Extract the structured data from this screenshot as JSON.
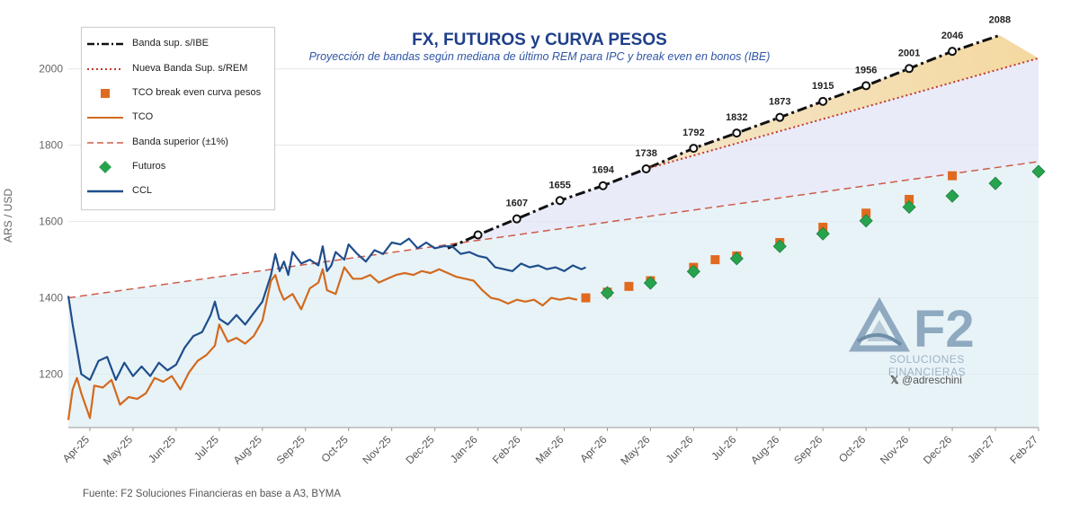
{
  "title": "FX, FUTUROS y CURVA PESOS",
  "subtitle": "Proyección de bandas según mediana de último REM para IPC y break even en bonos (IBE)",
  "source": "Fuente: F2 Soluciones Financieras en base a A3, BYMA",
  "brand": {
    "logo_text": "F2",
    "tagline": "SOLUCIONES FINANCIERAS",
    "handle": "@adreschini",
    "handle_icon": "x-logo-icon",
    "logo_color": "#8faac0"
  },
  "legend": [
    {
      "label": "Banda sup. s/IBE",
      "symbol": "dashdot-line",
      "color": "#111111"
    },
    {
      "label": "Nueva Banda Sup. s/REM",
      "symbol": "dotted-line",
      "color": "#c0392b"
    },
    {
      "label": "TCO break even curva pesos",
      "symbol": "square",
      "color": "#e06a1f"
    },
    {
      "label": "TCO",
      "symbol": "line",
      "color": "#d26a1e"
    },
    {
      "label": "Banda superior (±1%)",
      "symbol": "dashed-line",
      "color": "#cd5c4a"
    },
    {
      "label": "Futuros",
      "symbol": "diamond",
      "color": "#27a34e"
    },
    {
      "label": "CCL",
      "symbol": "line",
      "color": "#1f4e8c"
    }
  ],
  "chart_data": {
    "type": "line",
    "title": "FX, FUTUROS y CURVA PESOS",
    "ylabel": "ARS / USD",
    "xlabel": "",
    "ylim": [
      1060,
      2110
    ],
    "yticks": [
      1200,
      1400,
      1600,
      1800,
      2000
    ],
    "xlim": [
      0,
      22.5
    ],
    "x_note": "x expressed in months from 2025-03-31 (0 = end of Mar-25)",
    "xticks": [
      {
        "x": 0.5,
        "label": "Apr-25"
      },
      {
        "x": 1.5,
        "label": "May-25"
      },
      {
        "x": 2.5,
        "label": "Jun-25"
      },
      {
        "x": 3.5,
        "label": "Jul-25"
      },
      {
        "x": 4.5,
        "label": "Aug-25"
      },
      {
        "x": 5.5,
        "label": "Sep-25"
      },
      {
        "x": 6.5,
        "label": "Oct-25"
      },
      {
        "x": 7.5,
        "label": "Nov-25"
      },
      {
        "x": 8.5,
        "label": "Dec-25"
      },
      {
        "x": 9.5,
        "label": "Jan-26"
      },
      {
        "x": 10.5,
        "label": "Feb-26"
      },
      {
        "x": 11.5,
        "label": "Mar-26"
      },
      {
        "x": 12.5,
        "label": "Apr-26"
      },
      {
        "x": 13.5,
        "label": "May-26"
      },
      {
        "x": 14.5,
        "label": "Jun-26"
      },
      {
        "x": 15.5,
        "label": "Jul-26"
      },
      {
        "x": 16.5,
        "label": "Aug-26"
      },
      {
        "x": 17.5,
        "label": "Sep-26"
      },
      {
        "x": 18.5,
        "label": "Oct-26"
      },
      {
        "x": 19.5,
        "label": "Nov-26"
      },
      {
        "x": 20.5,
        "label": "Dec-26"
      },
      {
        "x": 21.5,
        "label": "Jan-27"
      },
      {
        "x": 22.5,
        "label": "Feb-27"
      }
    ],
    "series": [
      {
        "name": "Banda superior (±1%)",
        "style": "dashed",
        "color": "#cd5c4a",
        "points": [
          [
            0,
            1400
          ],
          [
            22.5,
            1757
          ]
        ]
      },
      {
        "name": "Banda sup. s/IBE",
        "style": "dashdot",
        "color": "#111111",
        "points": [
          [
            8.8,
            1530
          ],
          [
            9.5,
            1565
          ],
          [
            10.4,
            1607
          ],
          [
            11.4,
            1655
          ],
          [
            12.4,
            1694
          ],
          [
            13.4,
            1738
          ],
          [
            14.5,
            1792
          ],
          [
            15.5,
            1832
          ],
          [
            16.5,
            1873
          ],
          [
            17.5,
            1915
          ],
          [
            18.5,
            1956
          ],
          [
            19.5,
            2001
          ],
          [
            20.5,
            2046
          ],
          [
            21.6,
            2088
          ]
        ],
        "markers": [
          [
            9.5,
            1565
          ],
          [
            10.4,
            1607
          ],
          [
            11.4,
            1655
          ],
          [
            12.4,
            1694
          ],
          [
            13.4,
            1738
          ],
          [
            14.5,
            1792
          ],
          [
            15.5,
            1832
          ],
          [
            16.5,
            1873
          ],
          [
            17.5,
            1915
          ],
          [
            18.5,
            1956
          ],
          [
            19.5,
            2001
          ],
          [
            20.5,
            2046
          ]
        ],
        "labels": [
          {
            "x": 10.4,
            "y": 1607,
            "text": "1607"
          },
          {
            "x": 11.4,
            "y": 1655,
            "text": "1655"
          },
          {
            "x": 12.4,
            "y": 1694,
            "text": "1694"
          },
          {
            "x": 13.4,
            "y": 1738,
            "text": "1738"
          },
          {
            "x": 14.5,
            "y": 1792,
            "text": "1792"
          },
          {
            "x": 15.5,
            "y": 1832,
            "text": "1832"
          },
          {
            "x": 16.5,
            "y": 1873,
            "text": "1873"
          },
          {
            "x": 17.5,
            "y": 1915,
            "text": "1915"
          },
          {
            "x": 18.5,
            "y": 1956,
            "text": "1956"
          },
          {
            "x": 19.5,
            "y": 2001,
            "text": "2001"
          },
          {
            "x": 20.5,
            "y": 2046,
            "text": "2046"
          },
          {
            "x": 21.6,
            "y": 2088,
            "text": "2088"
          }
        ]
      },
      {
        "name": "Nueva Banda Sup. s/REM",
        "style": "dotted",
        "color": "#c0392b",
        "points": [
          [
            13.4,
            1738
          ],
          [
            22.5,
            2028
          ]
        ]
      },
      {
        "name": "CCL",
        "style": "solid",
        "color": "#1f4e8c",
        "points": [
          [
            0,
            1405
          ],
          [
            0.1,
            1330
          ],
          [
            0.3,
            1200
          ],
          [
            0.5,
            1185
          ],
          [
            0.7,
            1235
          ],
          [
            0.9,
            1245
          ],
          [
            1.1,
            1185
          ],
          [
            1.3,
            1230
          ],
          [
            1.5,
            1195
          ],
          [
            1.7,
            1220
          ],
          [
            1.9,
            1195
          ],
          [
            2.1,
            1230
          ],
          [
            2.3,
            1210
          ],
          [
            2.5,
            1225
          ],
          [
            2.7,
            1270
          ],
          [
            2.9,
            1300
          ],
          [
            3.1,
            1310
          ],
          [
            3.3,
            1355
          ],
          [
            3.4,
            1390
          ],
          [
            3.5,
            1345
          ],
          [
            3.7,
            1330
          ],
          [
            3.9,
            1355
          ],
          [
            4.1,
            1330
          ],
          [
            4.3,
            1360
          ],
          [
            4.5,
            1390
          ],
          [
            4.7,
            1460
          ],
          [
            4.8,
            1515
          ],
          [
            4.9,
            1470
          ],
          [
            5.0,
            1495
          ],
          [
            5.1,
            1460
          ],
          [
            5.2,
            1520
          ],
          [
            5.4,
            1490
          ],
          [
            5.6,
            1500
          ],
          [
            5.8,
            1485
          ],
          [
            5.9,
            1535
          ],
          [
            6.0,
            1470
          ],
          [
            6.1,
            1485
          ],
          [
            6.2,
            1520
          ],
          [
            6.4,
            1500
          ],
          [
            6.5,
            1540
          ],
          [
            6.7,
            1515
          ],
          [
            6.9,
            1495
          ],
          [
            7.1,
            1525
          ],
          [
            7.3,
            1515
          ],
          [
            7.5,
            1545
          ],
          [
            7.7,
            1540
          ],
          [
            7.9,
            1555
          ],
          [
            8.1,
            1530
          ],
          [
            8.3,
            1545
          ],
          [
            8.5,
            1530
          ],
          [
            8.7,
            1535
          ],
          [
            8.9,
            1535
          ],
          [
            9.1,
            1515
          ],
          [
            9.3,
            1520
          ],
          [
            9.5,
            1510
          ],
          [
            9.7,
            1505
          ],
          [
            9.9,
            1480
          ],
          [
            10.1,
            1475
          ],
          [
            10.3,
            1470
          ],
          [
            10.5,
            1490
          ],
          [
            10.7,
            1480
          ],
          [
            10.9,
            1485
          ],
          [
            11.1,
            1475
          ],
          [
            11.3,
            1480
          ],
          [
            11.5,
            1470
          ],
          [
            11.7,
            1485
          ],
          [
            11.9,
            1475
          ],
          [
            12.0,
            1480
          ]
        ]
      },
      {
        "name": "TCO",
        "style": "solid",
        "color": "#d26a1e",
        "points": [
          [
            0,
            1080
          ],
          [
            0.1,
            1160
          ],
          [
            0.2,
            1190
          ],
          [
            0.3,
            1150
          ],
          [
            0.5,
            1085
          ],
          [
            0.6,
            1170
          ],
          [
            0.8,
            1165
          ],
          [
            1.0,
            1185
          ],
          [
            1.2,
            1120
          ],
          [
            1.4,
            1140
          ],
          [
            1.6,
            1135
          ],
          [
            1.8,
            1150
          ],
          [
            2.0,
            1190
          ],
          [
            2.2,
            1180
          ],
          [
            2.4,
            1195
          ],
          [
            2.6,
            1160
          ],
          [
            2.8,
            1205
          ],
          [
            3.0,
            1235
          ],
          [
            3.2,
            1250
          ],
          [
            3.4,
            1275
          ],
          [
            3.5,
            1330
          ],
          [
            3.7,
            1285
          ],
          [
            3.9,
            1295
          ],
          [
            4.1,
            1280
          ],
          [
            4.3,
            1300
          ],
          [
            4.5,
            1340
          ],
          [
            4.7,
            1445
          ],
          [
            4.8,
            1460
          ],
          [
            4.9,
            1420
          ],
          [
            5.0,
            1395
          ],
          [
            5.2,
            1410
          ],
          [
            5.4,
            1370
          ],
          [
            5.6,
            1425
          ],
          [
            5.8,
            1440
          ],
          [
            5.9,
            1475
          ],
          [
            6.0,
            1420
          ],
          [
            6.2,
            1410
          ],
          [
            6.4,
            1480
          ],
          [
            6.6,
            1450
          ],
          [
            6.8,
            1450
          ],
          [
            7.0,
            1460
          ],
          [
            7.2,
            1440
          ],
          [
            7.4,
            1450
          ],
          [
            7.6,
            1460
          ],
          [
            7.8,
            1465
          ],
          [
            8.0,
            1460
          ],
          [
            8.2,
            1470
          ],
          [
            8.4,
            1465
          ],
          [
            8.6,
            1475
          ],
          [
            8.8,
            1465
          ],
          [
            9.0,
            1455
          ],
          [
            9.2,
            1450
          ],
          [
            9.4,
            1445
          ],
          [
            9.6,
            1420
          ],
          [
            9.8,
            1400
          ],
          [
            10.0,
            1395
          ],
          [
            10.2,
            1385
          ],
          [
            10.4,
            1395
          ],
          [
            10.6,
            1390
          ],
          [
            10.8,
            1395
          ],
          [
            11.0,
            1380
          ],
          [
            11.2,
            1400
          ],
          [
            11.4,
            1395
          ],
          [
            11.6,
            1400
          ],
          [
            11.8,
            1395
          ]
        ]
      },
      {
        "name": "TCO break even curva pesos",
        "style": "markers-square",
        "color": "#e06a1f",
        "points": [
          [
            12.0,
            1400
          ],
          [
            12.5,
            1415
          ],
          [
            13.0,
            1430
          ],
          [
            13.5,
            1445
          ],
          [
            14.5,
            1480
          ],
          [
            15.0,
            1500
          ],
          [
            15.5,
            1510
          ],
          [
            16.5,
            1545
          ],
          [
            17.5,
            1585
          ],
          [
            18.5,
            1622
          ],
          [
            19.5,
            1658
          ],
          [
            20.5,
            1720
          ]
        ]
      },
      {
        "name": "Futuros",
        "style": "markers-diamond",
        "color": "#27a34e",
        "points": [
          [
            12.5,
            1413
          ],
          [
            13.5,
            1439
          ],
          [
            14.5,
            1469
          ],
          [
            15.5,
            1503
          ],
          [
            16.5,
            1535
          ],
          [
            17.5,
            1568
          ],
          [
            18.5,
            1602
          ],
          [
            19.5,
            1638
          ],
          [
            20.5,
            1667
          ],
          [
            21.5,
            1700
          ],
          [
            22.5,
            1731
          ]
        ]
      }
    ]
  }
}
